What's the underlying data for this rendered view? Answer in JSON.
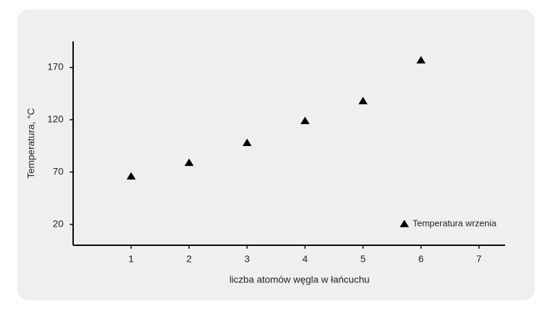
{
  "chart_data": {
    "type": "scatter",
    "x_label": "liczba atomów węgla w łańcuchu",
    "y_label": "Temperatura, °C",
    "series": [
      {
        "name": "Temperatura wrzenia",
        "color": "#000000",
        "marker": "triangle",
        "x": [
          1,
          2,
          3,
          4,
          5,
          6
        ],
        "values": [
          66,
          79,
          98,
          119,
          138,
          177
        ]
      }
    ],
    "xlim": [
      0,
      7.45
    ],
    "xticks": [
      1,
      2,
      3,
      4,
      5,
      6,
      7
    ],
    "ylim": [
      0,
      195
    ],
    "yticks": [
      20,
      70,
      120,
      170
    ],
    "grid": false,
    "legend": "bottom-right"
  }
}
